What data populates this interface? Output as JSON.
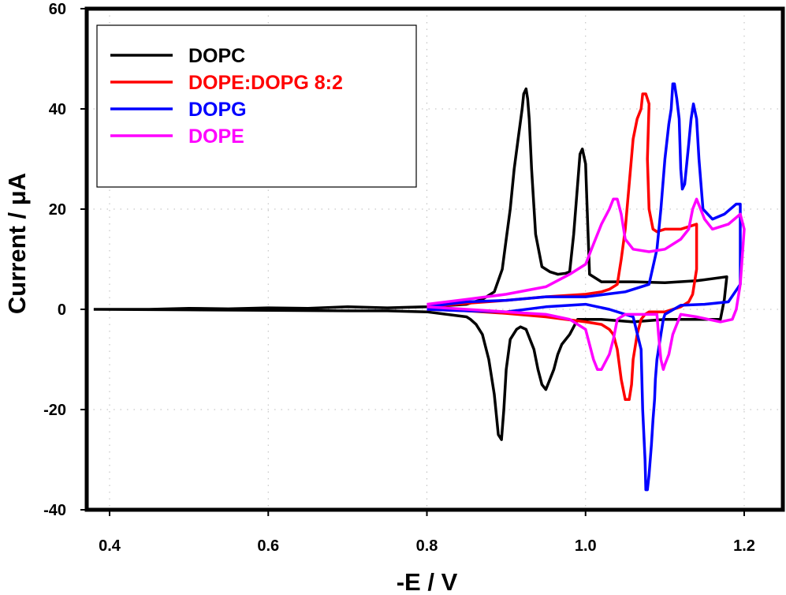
{
  "chart_data": {
    "type": "line",
    "title": "",
    "xlabel": "-E / V",
    "ylabel": "Current / μA",
    "xlim": [
      0.372,
      1.249
    ],
    "ylim": [
      -40,
      60
    ],
    "xticks": [
      0.4,
      0.6,
      0.8,
      1.0,
      1.2
    ],
    "xtick_labels": [
      "0.4",
      "0.6",
      "0.8",
      "1.0",
      "1.2"
    ],
    "yticks": [
      -40,
      -20,
      0,
      20,
      40,
      60
    ],
    "ytick_labels": [
      "-40",
      "-20",
      "0",
      "20",
      "40",
      "60"
    ],
    "grid": "dotted, light gray",
    "legend_position": "top-left",
    "series": [
      {
        "name": "DOPC",
        "color": "#000000",
        "x": [
          0.38,
          0.45,
          0.5,
          0.55,
          0.6,
          0.65,
          0.7,
          0.75,
          0.8,
          0.85,
          0.87,
          0.885,
          0.895,
          0.9,
          0.905,
          0.91,
          0.915,
          0.92,
          0.922,
          0.925,
          0.927,
          0.929,
          0.932,
          0.937,
          0.945,
          0.955,
          0.965,
          0.975,
          0.98,
          0.985,
          0.99,
          0.993,
          0.996,
          1.0,
          1.002,
          1.005,
          1.02,
          1.06,
          1.1,
          1.14,
          1.178,
          1.175,
          1.17,
          1.14,
          1.1,
          1.06,
          1.02,
          0.99,
          0.985,
          0.98,
          0.97,
          0.965,
          0.96,
          0.955,
          0.95,
          0.945,
          0.94,
          0.935,
          0.925,
          0.918,
          0.913,
          0.905,
          0.9,
          0.897,
          0.894,
          0.89,
          0.885,
          0.878,
          0.87,
          0.862,
          0.855,
          0.85,
          0.8,
          0.75,
          0.7,
          0.6,
          0.5,
          0.38
        ],
        "y": [
          0,
          0,
          0.2,
          0.1,
          0.3,
          0.2,
          0.5,
          0.3,
          0.5,
          1.0,
          2.0,
          3.5,
          8,
          14,
          20,
          28,
          34,
          40,
          43,
          44,
          42,
          38,
          28,
          15,
          8.5,
          7.5,
          7,
          7.2,
          7.5,
          15,
          25,
          31,
          32,
          29,
          20,
          7,
          5.5,
          5.5,
          5.3,
          5.7,
          6.5,
          2,
          -2,
          -2,
          -2,
          -2.5,
          -2,
          -2,
          -3.5,
          -5,
          -7,
          -9,
          -12,
          -14,
          -16,
          -15,
          -12,
          -8,
          -4,
          -3.5,
          -4,
          -6,
          -12,
          -20,
          -26,
          -25,
          -17,
          -10,
          -5,
          -3,
          -2,
          -1.5,
          -0.5,
          -0.3,
          -0.3,
          -0.2,
          -0.1,
          0
        ]
      },
      {
        "name": "DOPE:DOPG 8:2",
        "color": "#ff0000",
        "x": [
          0.8,
          0.85,
          0.9,
          0.95,
          1.0,
          1.02,
          1.03,
          1.04,
          1.045,
          1.05,
          1.055,
          1.06,
          1.065,
          1.07,
          1.072,
          1.076,
          1.08,
          1.078,
          1.08,
          1.085,
          1.09,
          1.1,
          1.12,
          1.14,
          1.14,
          1.135,
          1.13,
          1.12,
          1.1,
          1.08,
          1.075,
          1.07,
          1.065,
          1.06,
          1.058,
          1.055,
          1.05,
          1.045,
          1.04,
          1.035,
          1.03,
          1.02,
          1.0,
          0.95,
          0.9,
          0.85,
          0.8
        ],
        "y": [
          0.5,
          1.2,
          1.8,
          2.5,
          3.0,
          3.5,
          4,
          5,
          10,
          16,
          25,
          34,
          38,
          40,
          43,
          43,
          41,
          30,
          20,
          16,
          15.5,
          16,
          16,
          17,
          8,
          3,
          1.5,
          0.5,
          -0.5,
          -0.5,
          -1,
          -2,
          -5,
          -10,
          -15,
          -18,
          -18,
          -14,
          -8,
          -5,
          -4,
          -3,
          -2.5,
          -1.5,
          -0.8,
          -0.3,
          0
        ]
      },
      {
        "name": "DOPG",
        "color": "#0000ff",
        "x": [
          0.8,
          0.85,
          0.9,
          0.95,
          1.0,
          1.05,
          1.08,
          1.09,
          1.095,
          1.1,
          1.105,
          1.108,
          1.11,
          1.112,
          1.115,
          1.118,
          1.12,
          1.122,
          1.125,
          1.13,
          1.133,
          1.136,
          1.14,
          1.143,
          1.148,
          1.16,
          1.175,
          1.19,
          1.195,
          1.195,
          1.18,
          1.15,
          1.12,
          1.1,
          1.098,
          1.095,
          1.09,
          1.088,
          1.087,
          1.085,
          1.083,
          1.08,
          1.078,
          1.076,
          1.075,
          1.072,
          1.07,
          1.06,
          1.03,
          1.0,
          0.95,
          0.9,
          0.85,
          0.8
        ],
        "y": [
          0.5,
          1.5,
          1.8,
          2.5,
          2.5,
          3.5,
          5,
          12,
          20,
          30,
          37,
          40,
          45,
          45,
          42,
          38,
          28,
          24,
          25,
          33,
          38,
          41,
          38,
          30,
          20,
          18,
          19,
          21,
          21,
          5,
          1.5,
          1,
          0.8,
          -1,
          -2,
          -5,
          -10,
          -14,
          -18,
          -22,
          -27,
          -33,
          -36,
          -36,
          -30,
          -20,
          -8,
          -1.5,
          0,
          1.0,
          0.5,
          -0.5,
          -0.3,
          0
        ]
      },
      {
        "name": "DOPE",
        "color": "#ff00ff",
        "x": [
          0.8,
          0.85,
          0.9,
          0.95,
          0.98,
          1.0,
          1.01,
          1.02,
          1.03,
          1.035,
          1.04,
          1.045,
          1.05,
          1.06,
          1.08,
          1.1,
          1.12,
          1.13,
          1.135,
          1.14,
          1.145,
          1.15,
          1.16,
          1.18,
          1.195,
          1.2,
          1.195,
          1.19,
          1.185,
          1.17,
          1.14,
          1.12,
          1.11,
          1.105,
          1.1,
          1.098,
          1.095,
          1.092,
          1.09,
          1.08,
          1.05,
          1.04,
          1.035,
          1.03,
          1.02,
          1.015,
          1.01,
          1.005,
          1.0,
          0.98,
          0.95,
          0.9,
          0.85,
          0.8
        ],
        "y": [
          1.0,
          2.0,
          3.0,
          4.5,
          7,
          9,
          13,
          17,
          20,
          22,
          22,
          19,
          14,
          12,
          11.5,
          12,
          14,
          16,
          20,
          22,
          20,
          18,
          16,
          17,
          19,
          16,
          5,
          0,
          -2,
          -2.5,
          -1.5,
          -1,
          -5,
          -9,
          -11,
          -12,
          -10,
          -5,
          -1,
          -1,
          -1,
          -2,
          -6,
          -9,
          -12,
          -12,
          -10,
          -7,
          -4,
          -2,
          -1,
          -0.5,
          0,
          0.5
        ]
      }
    ]
  },
  "legend": {
    "items": [
      {
        "label": "DOPC",
        "color": "#000000"
      },
      {
        "label": "DOPE:DOPG 8:2",
        "color": "#ff0000"
      },
      {
        "label": "DOPG",
        "color": "#0000ff"
      },
      {
        "label": "DOPE",
        "color": "#ff00ff"
      }
    ]
  }
}
